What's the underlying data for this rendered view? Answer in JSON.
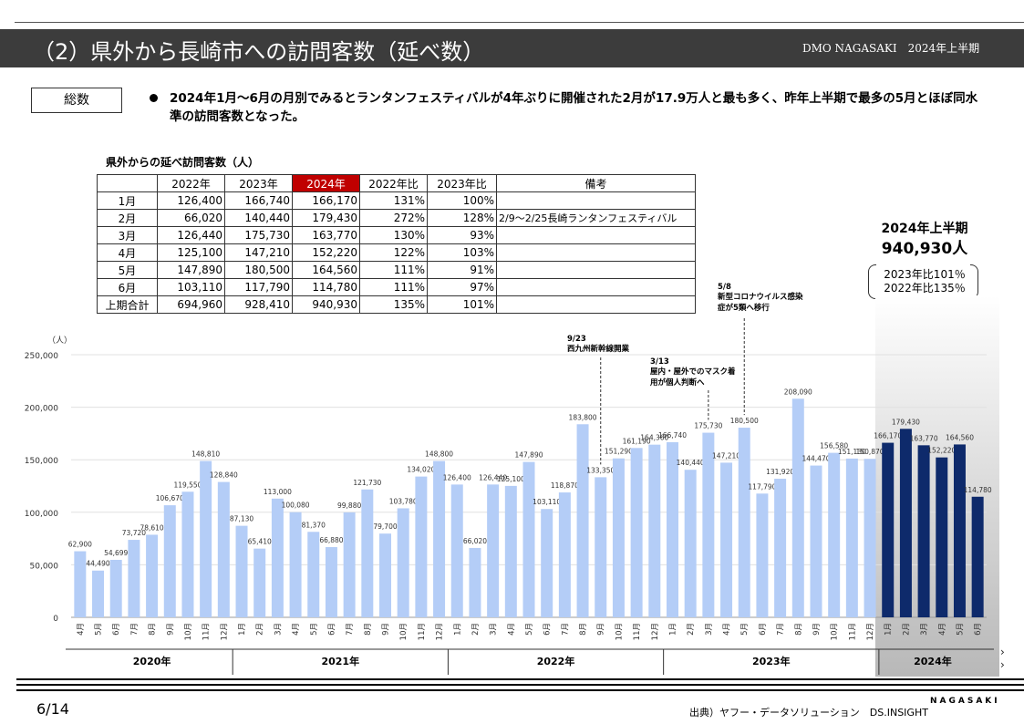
{
  "header": {
    "title": "（2）県外から長崎市への訪問客数（延べ数）",
    "badge": "DMO NAGASAKI　2024年上半期"
  },
  "section_label": "総数",
  "summary_text": "2024年1月～6月の月別でみるとランタンフェスティバルが4年ぶりに開催された2月が17.9万人と最も多く、昨年上半期で最多の5月とほぼ同水準の訪問客数となった。",
  "table": {
    "title": "県外からの延べ訪問客数（人）",
    "headers": [
      "",
      "2022年",
      "2023年",
      "2024年",
      "2022年比",
      "2023年比",
      "備考"
    ],
    "rows": [
      [
        "1月",
        "126,400",
        "166,740",
        "166,170",
        "131%",
        "100%",
        ""
      ],
      [
        "2月",
        "66,020",
        "140,440",
        "179,430",
        "272%",
        "128%",
        "2/9～2/25長崎ランタンフェスティバル"
      ],
      [
        "3月",
        "126,440",
        "175,730",
        "163,770",
        "130%",
        "93%",
        ""
      ],
      [
        "4月",
        "125,100",
        "147,210",
        "152,220",
        "122%",
        "103%",
        ""
      ],
      [
        "5月",
        "147,890",
        "180,500",
        "164,560",
        "111%",
        "91%",
        ""
      ],
      [
        "6月",
        "103,110",
        "117,790",
        "114,780",
        "111%",
        "97%",
        ""
      ],
      [
        "上期合計",
        "694,960",
        "928,410",
        "940,930",
        "135%",
        "101%",
        ""
      ]
    ]
  },
  "summary_box": {
    "title": "2024年上半期",
    "total": "940,930人",
    "ratio_2023": "2023年比101％",
    "ratio_2022": "2022年比135％"
  },
  "chart_data": {
    "type": "bar",
    "ylabel": "（人）",
    "ylim": [
      0,
      250000
    ],
    "yticks": [
      "0",
      "50,000",
      "100,000",
      "150,000",
      "200,000",
      "250,000"
    ],
    "grid": true,
    "categories": [
      "4月",
      "5月",
      "6月",
      "7月",
      "8月",
      "9月",
      "10月",
      "11月",
      "12月",
      "1月",
      "2月",
      "3月",
      "4月",
      "5月",
      "6月",
      "7月",
      "8月",
      "9月",
      "10月",
      "11月",
      "12月",
      "1月",
      "2月",
      "3月",
      "4月",
      "5月",
      "6月",
      "7月",
      "8月",
      "9月",
      "10月",
      "11月",
      "12月",
      "1月",
      "2月",
      "3月",
      "4月",
      "5月",
      "6月",
      "7月",
      "8月",
      "9月",
      "10月",
      "11月",
      "12月",
      "1月",
      "2月",
      "3月",
      "4月",
      "5月",
      "6月"
    ],
    "values": [
      62900,
      44490,
      54699,
      73720,
      78610,
      106670,
      119550,
      148810,
      128840,
      87130,
      65410,
      113000,
      100080,
      81370,
      66880,
      99880,
      121730,
      79700,
      103780,
      134020,
      148800,
      126400,
      66020,
      126440,
      125100,
      147890,
      103110,
      118870,
      183800,
      133350,
      151290,
      161190,
      164360,
      166740,
      140440,
      175730,
      147210,
      180500,
      117790,
      131920,
      208090,
      144470,
      156580,
      151130,
      150870,
      166170,
      179430,
      163770,
      152220,
      164560,
      114780
    ],
    "labels": [
      "62,900",
      "44,490",
      "54,699",
      "73,720",
      "78,610",
      "106,670",
      "119,550",
      "148,810",
      "128,840",
      "87,130",
      "65,410",
      "113,000",
      "100,080",
      "81,370",
      "66,880",
      "99,880",
      "121,730",
      "79,700",
      "103,780",
      "134,020",
      "148,800",
      "126,400",
      "66,020",
      "126,440",
      "125,100",
      "147,890",
      "103,110",
      "118,870",
      "183,800",
      "133,350",
      "151,290",
      "161,190",
      "164,360",
      "166,740",
      "140,440",
      "175,730",
      "147,210",
      "180,500",
      "117,790",
      "131,920",
      "208,090",
      "144,470",
      "156,580",
      "151,130",
      "150,870",
      "166,170",
      "179,430",
      "163,770",
      "152,220",
      "164,560",
      "114,780"
    ],
    "years": [
      {
        "label": "2020年",
        "start": 0,
        "end": 8
      },
      {
        "label": "2021年",
        "start": 9,
        "end": 20
      },
      {
        "label": "2022年",
        "start": 21,
        "end": 32
      },
      {
        "label": "2023年",
        "start": 33,
        "end": 44
      },
      {
        "label": "2024年",
        "start": 45,
        "end": 50
      }
    ],
    "highlight_start": 45,
    "colors": {
      "normal": "#b4cdf7",
      "highlight": "#0e2a6b"
    },
    "annotations": [
      {
        "index": 29,
        "date": "9/23",
        "text": "西九州新幹線開業"
      },
      {
        "index": 35,
        "date": "3/13",
        "text": "屋内・屋外でのマスク着用が個人判断へ"
      },
      {
        "index": 37,
        "date": "5/8",
        "text": "新型コロナウイルス感染症が5類へ移行"
      }
    ]
  },
  "footer": {
    "page": "6/14",
    "source": "出典）ヤフー・データソリューション　DS.INSIGHT",
    "brand": "NAGASAKI"
  }
}
